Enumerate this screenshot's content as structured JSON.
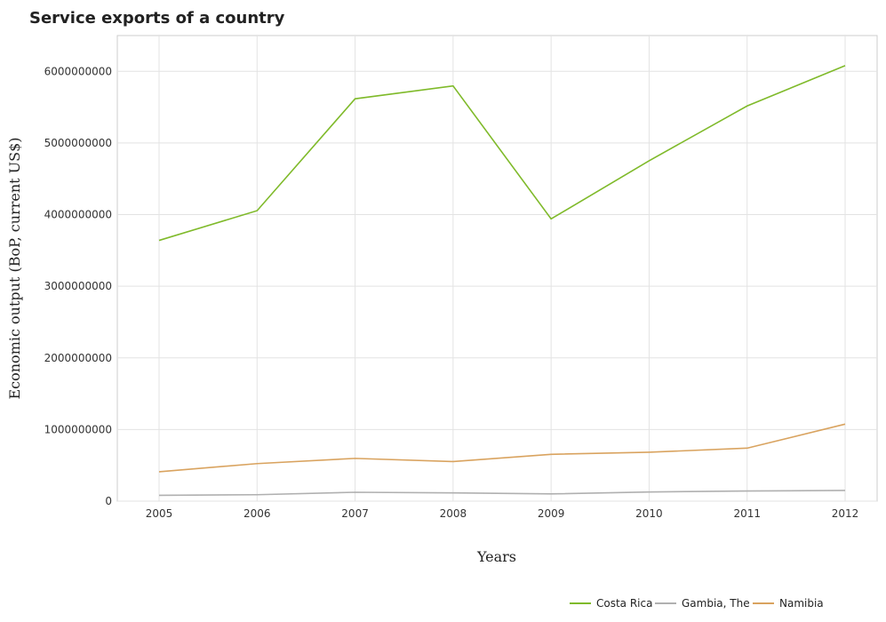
{
  "chart_data": {
    "type": "line",
    "title": "Service exports of a country",
    "xlabel": "Years",
    "ylabel": "Economic output (BoP, current US$)",
    "categories": [
      "2005",
      "2006",
      "2007",
      "2008",
      "2009",
      "2010",
      "2011",
      "2012"
    ],
    "ylim": [
      0,
      6500000000
    ],
    "yticks": [
      0,
      1000000000,
      2000000000,
      3000000000,
      4000000000,
      5000000000,
      6000000000
    ],
    "ytick_labels": [
      "0",
      "1000000000",
      "2000000000",
      "3000000000",
      "4000000000",
      "5000000000",
      "6000000000"
    ],
    "grid": true,
    "legend_position": "bottom-right",
    "series": [
      {
        "name": "Costa Rica",
        "color": "#7fba2a",
        "values": [
          3640000000,
          4055000000,
          5617000000,
          5797000000,
          3940000000,
          4752000000,
          5517000000,
          6080000000
        ]
      },
      {
        "name": "Gambia, The",
        "color": "#b0b0b0",
        "values": [
          82000000,
          90000000,
          124000000,
          115000000,
          101000000,
          128000000,
          142000000,
          150000000
        ]
      },
      {
        "name": "Namibia",
        "color": "#d9a35f",
        "values": [
          410000000,
          524000000,
          597000000,
          553000000,
          654000000,
          683000000,
          740000000,
          1075000000
        ]
      }
    ]
  }
}
